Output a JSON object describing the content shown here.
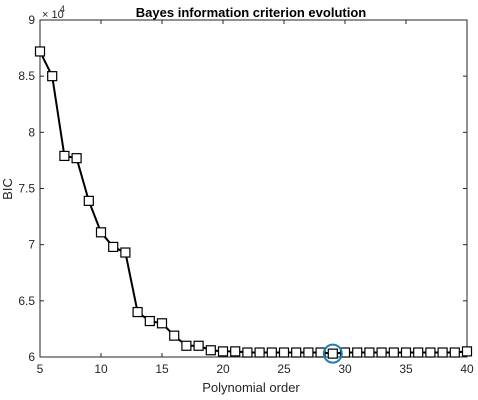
{
  "chart_data": {
    "type": "line",
    "title": "Bayes information criterion evolution",
    "xlabel": "Polynomial order",
    "ylabel": "BIC",
    "y_multiplier": "× 10",
    "y_multiplier_exponent": "4",
    "xlim": [
      5,
      40
    ],
    "ylim": [
      6,
      9
    ],
    "x_ticks": [
      5,
      10,
      15,
      20,
      25,
      30,
      35,
      40
    ],
    "x_tick_labels": [
      "5",
      "10",
      "15",
      "20",
      "25",
      "30",
      "35",
      "40"
    ],
    "y_ticks": [
      6,
      6.5,
      7,
      7.5,
      8,
      8.5,
      9
    ],
    "y_tick_labels": [
      "6",
      "6.5",
      "7",
      "7.5",
      "8",
      "8.5",
      "9"
    ],
    "grid": false,
    "marker": "square",
    "line_color": "#000000",
    "highlight_color": "#1f7fb4",
    "highlight_x": 29,
    "series": [
      {
        "x": [
          5,
          6,
          7,
          8,
          9,
          10,
          11,
          12,
          13,
          14,
          15,
          16,
          17,
          18,
          19,
          20,
          21,
          22,
          23,
          24,
          25,
          26,
          27,
          28,
          29,
          30,
          31,
          32,
          33,
          34,
          35,
          36,
          37,
          38,
          39,
          40
        ],
        "values": [
          8.72,
          8.5,
          7.79,
          7.77,
          7.39,
          7.11,
          6.98,
          6.93,
          6.4,
          6.32,
          6.3,
          6.19,
          6.1,
          6.1,
          6.06,
          6.05,
          6.05,
          6.04,
          6.04,
          6.04,
          6.04,
          6.04,
          6.04,
          6.04,
          6.03,
          6.04,
          6.04,
          6.04,
          6.04,
          6.04,
          6.04,
          6.04,
          6.04,
          6.04,
          6.04,
          6.05
        ]
      }
    ]
  }
}
